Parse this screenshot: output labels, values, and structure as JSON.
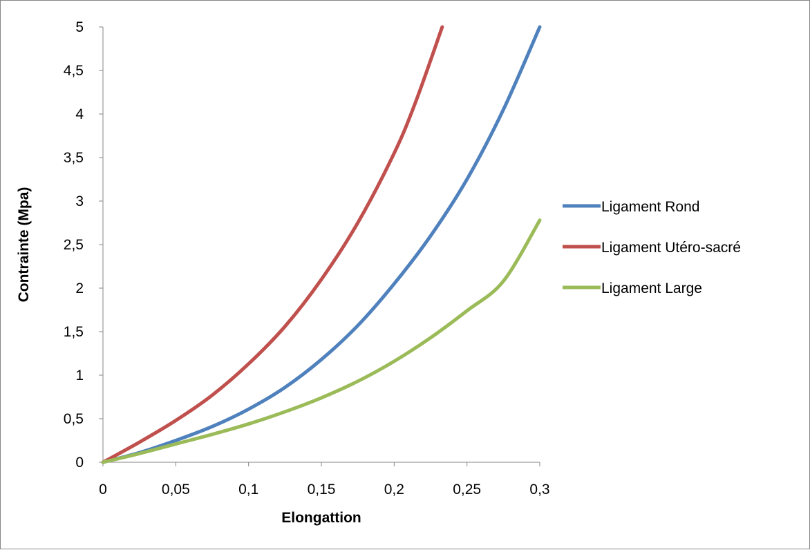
{
  "chart_data": {
    "type": "line",
    "title": "",
    "xlabel": "Elongattion",
    "ylabel": "Contrainte (Mpa)",
    "xlim": [
      0,
      0.3
    ],
    "ylim": [
      0,
      5
    ],
    "x_ticks": [
      "0",
      "0,05",
      "0,1",
      "0,15",
      "0,2",
      "0,25",
      "0,3"
    ],
    "y_ticks": [
      "0",
      "0,5",
      "1",
      "1,5",
      "2",
      "2,5",
      "3",
      "3,5",
      "4",
      "4,5",
      "5"
    ],
    "grid": false,
    "legend_position": "right",
    "series": [
      {
        "name": "Ligament Rond",
        "color": "#4F81BD",
        "x": [
          0,
          0.025,
          0.05,
          0.075,
          0.1,
          0.125,
          0.15,
          0.175,
          0.2,
          0.225,
          0.25,
          0.275,
          0.3
        ],
        "y": [
          0,
          0.11,
          0.25,
          0.41,
          0.61,
          0.86,
          1.18,
          1.57,
          2.05,
          2.6,
          3.25,
          4.05,
          5.0
        ]
      },
      {
        "name": "Ligament Utéro-sacré",
        "color": "#C0504D",
        "x": [
          0,
          0.025,
          0.05,
          0.075,
          0.1,
          0.125,
          0.15,
          0.175,
          0.2,
          0.215,
          0.233
        ],
        "y": [
          0,
          0.23,
          0.48,
          0.77,
          1.13,
          1.56,
          2.1,
          2.75,
          3.55,
          4.15,
          5.0
        ]
      },
      {
        "name": "Ligament Large",
        "color": "#9BBB59",
        "x": [
          0,
          0.025,
          0.05,
          0.075,
          0.1,
          0.125,
          0.15,
          0.175,
          0.2,
          0.225,
          0.25,
          0.275,
          0.3
        ],
        "y": [
          0,
          0.1,
          0.21,
          0.32,
          0.44,
          0.58,
          0.74,
          0.93,
          1.16,
          1.43,
          1.74,
          2.08,
          2.78
        ]
      }
    ]
  }
}
